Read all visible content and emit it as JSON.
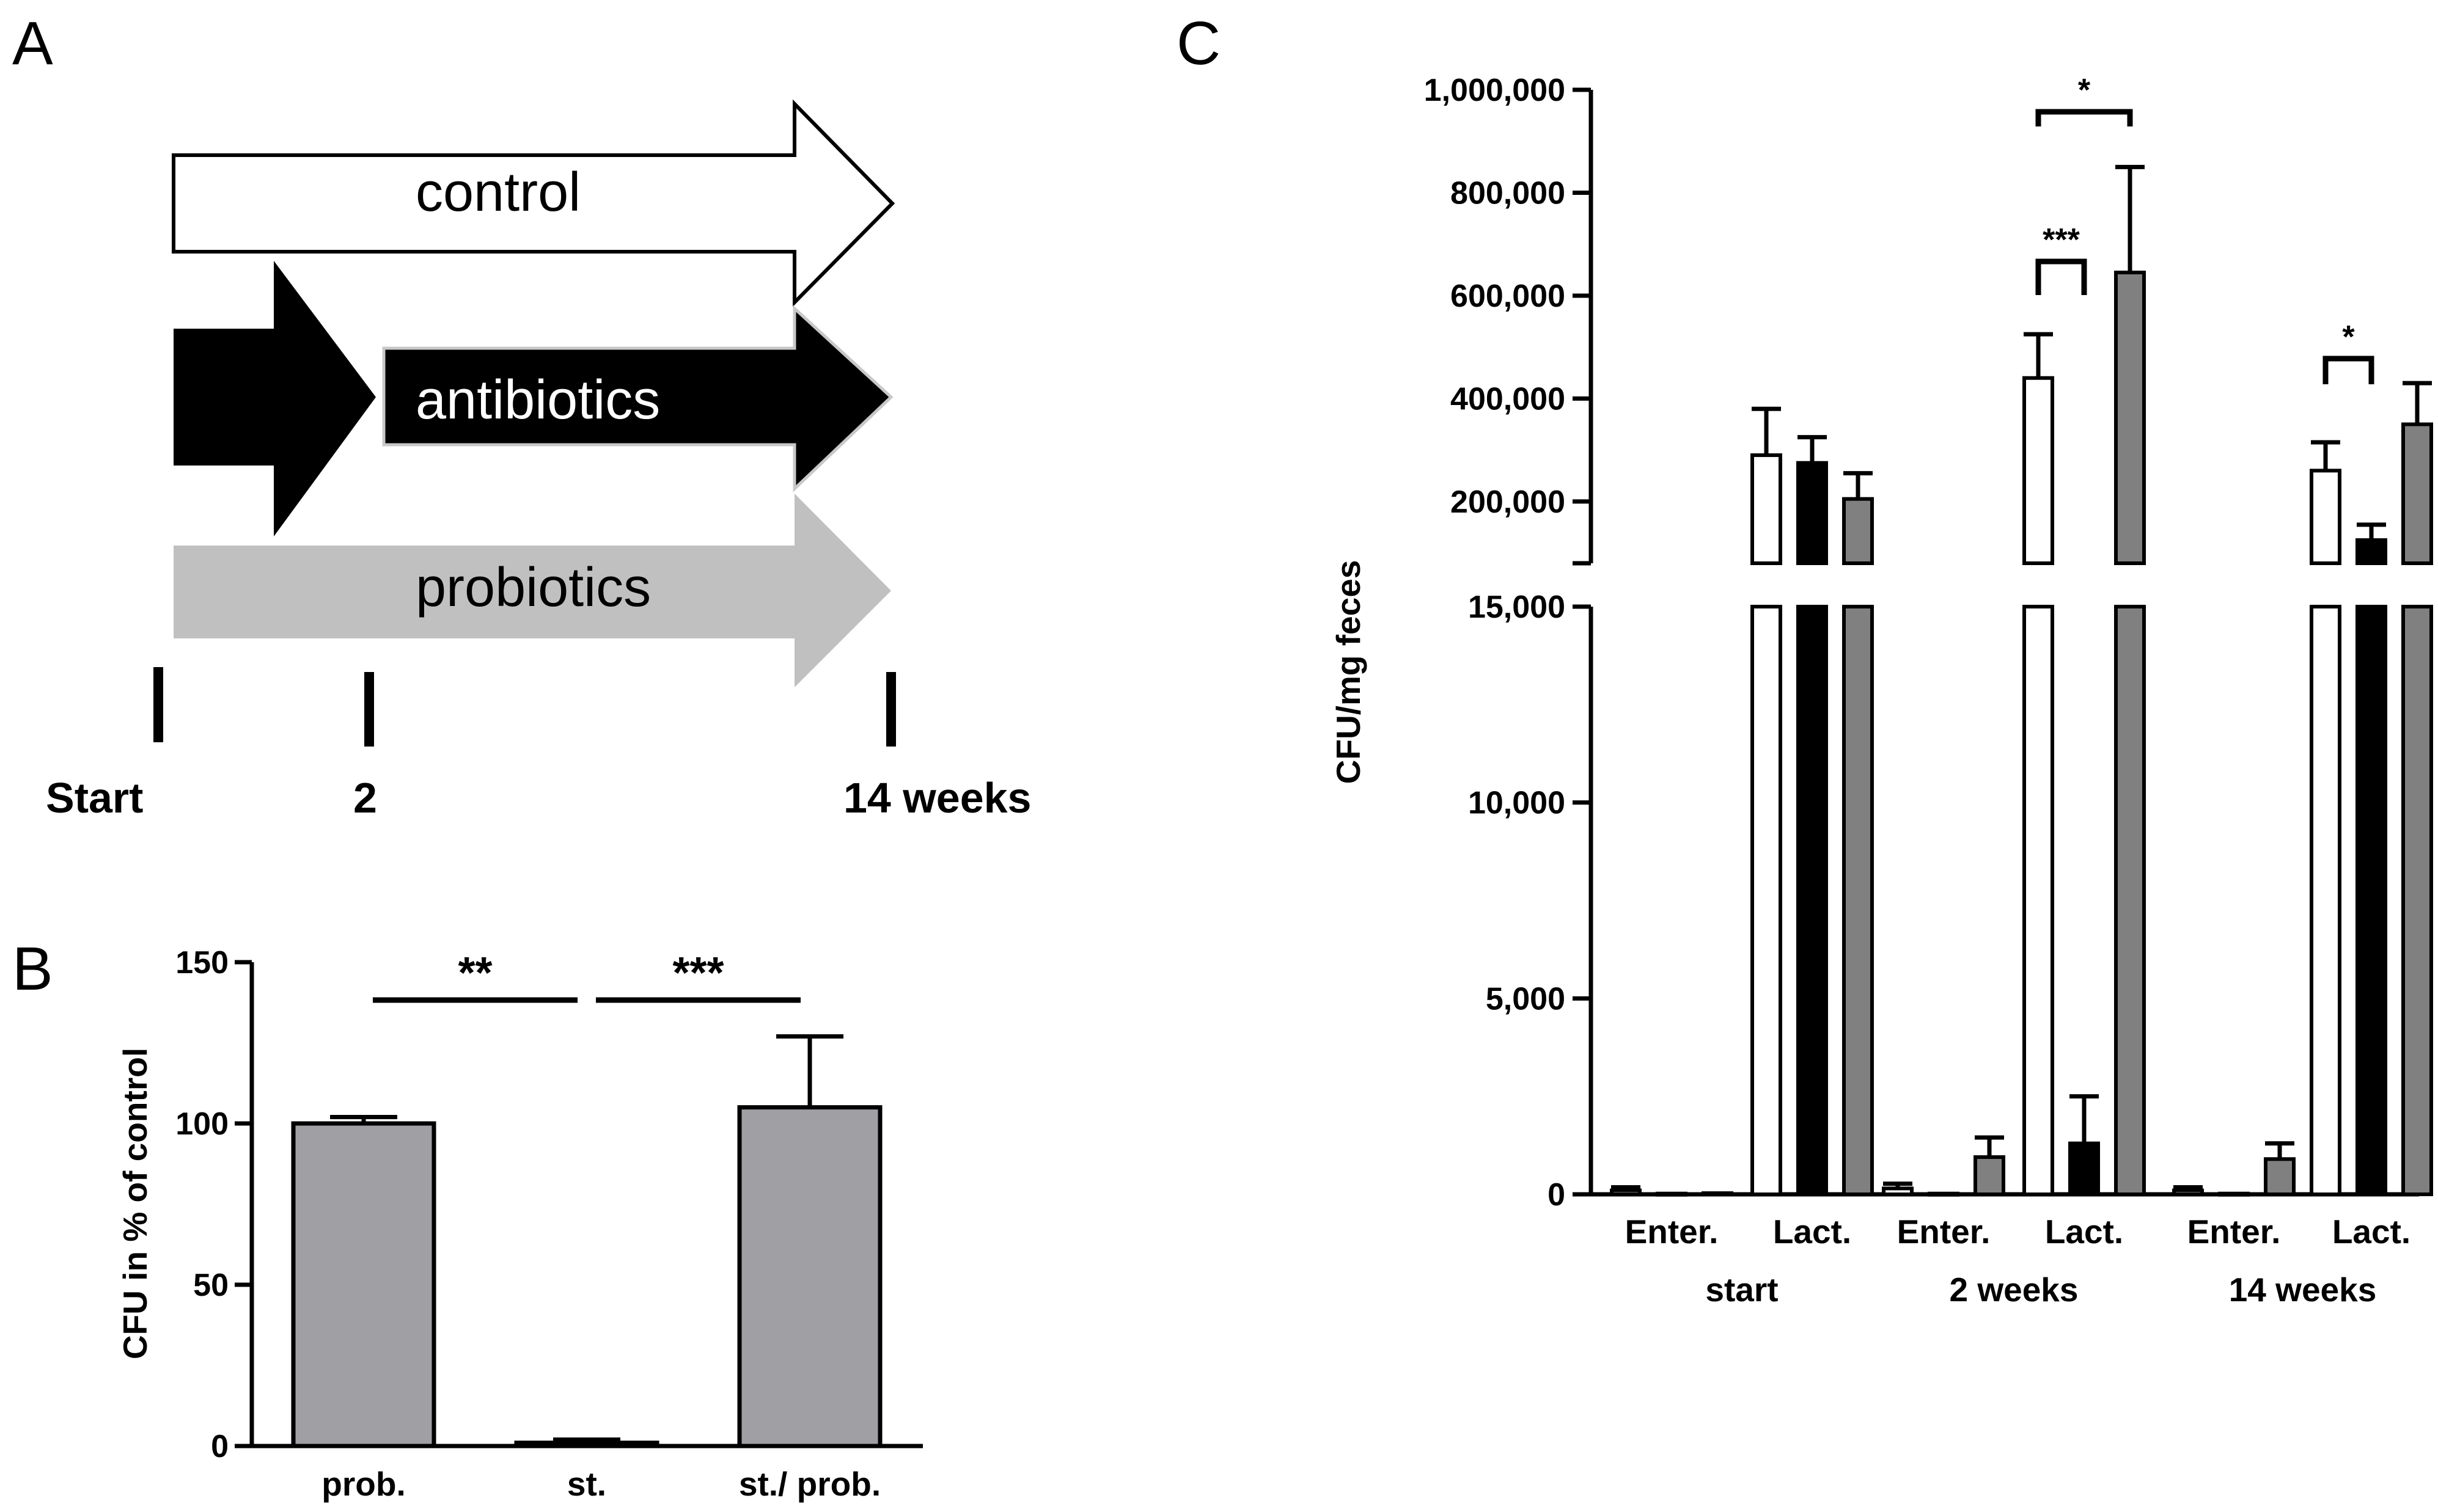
{
  "panels": {
    "a": "A",
    "b": "B",
    "c": "C"
  },
  "schematic": {
    "arrows": [
      {
        "label": "control",
        "fill": "#ffffff"
      },
      {
        "label": "antibiotics",
        "fill": "#000000"
      },
      {
        "label": "probiotics",
        "fill": "#c0c0c0"
      }
    ],
    "timeline": [
      "Start",
      "2",
      "14 weeks"
    ]
  },
  "chart_data": [
    {
      "id": "B",
      "type": "bar",
      "title": "",
      "xlabel": "",
      "ylabel": "CFU in % of control",
      "ylim": [
        0,
        150
      ],
      "yticks": [
        0,
        50,
        100,
        150
      ],
      "ytick_labels": [
        "0",
        "50",
        "100",
        "150"
      ],
      "categories": [
        "prob.",
        "st.",
        "st./ prob."
      ],
      "values": [
        100,
        1,
        105
      ],
      "errors": [
        2,
        1,
        22
      ],
      "bar_color": "#a0a0a4",
      "significance": [
        {
          "from": 0,
          "to": 1,
          "label": "**"
        },
        {
          "from": 1,
          "to": 2,
          "label": "***"
        }
      ]
    },
    {
      "id": "C",
      "type": "bar",
      "title": "",
      "xlabel": "",
      "ylabel": "CFU/mg feces",
      "axis_break": true,
      "lower_ylim": [
        0,
        15000
      ],
      "lower_ticks": [
        0,
        5000,
        10000,
        15000
      ],
      "lower_tick_labels": [
        "0",
        "5,000",
        "10,000",
        "15,000"
      ],
      "upper_ylim": [
        80000,
        1000000
      ],
      "upper_ticks": [
        200000,
        400000,
        600000,
        800000,
        1000000
      ],
      "upper_tick_labels": [
        "200,000",
        "400,000",
        "600,000",
        "800,000",
        "1,000,000"
      ],
      "series": [
        {
          "name": "control",
          "color": "#ffffff"
        },
        {
          "name": "antibiotics",
          "color": "#000000"
        },
        {
          "name": "probiotics",
          "color": "#808080"
        }
      ],
      "time_groups": [
        "start",
        "2 weeks",
        "14 weeks"
      ],
      "bacteria_groups": [
        "Enter.",
        "Lact."
      ],
      "bars": [
        {
          "time": "start",
          "bacteria": "Enter.",
          "series": "control",
          "value": 100,
          "error": 80
        },
        {
          "time": "start",
          "bacteria": "Enter.",
          "series": "antibiotics",
          "value": 20,
          "error": 0
        },
        {
          "time": "start",
          "bacteria": "Enter.",
          "series": "probiotics",
          "value": 30,
          "error": 0
        },
        {
          "time": "start",
          "bacteria": "Lact.",
          "series": "control",
          "value": 290000,
          "error": 90000
        },
        {
          "time": "start",
          "bacteria": "Lact.",
          "series": "antibiotics",
          "value": 275000,
          "error": 50000
        },
        {
          "time": "start",
          "bacteria": "Lact.",
          "series": "probiotics",
          "value": 205000,
          "error": 50000
        },
        {
          "time": "2 weeks",
          "bacteria": "Enter.",
          "series": "control",
          "value": 150,
          "error": 120
        },
        {
          "time": "2 weeks",
          "bacteria": "Enter.",
          "series": "antibiotics",
          "value": 20,
          "error": 0
        },
        {
          "time": "2 weeks",
          "bacteria": "Enter.",
          "series": "probiotics",
          "value": 950,
          "error": 500
        },
        {
          "time": "2 weeks",
          "bacteria": "Lact.",
          "series": "control",
          "value": 440000,
          "error": 85000
        },
        {
          "time": "2 weeks",
          "bacteria": "Lact.",
          "series": "antibiotics",
          "value": 1300,
          "error": 1200
        },
        {
          "time": "2 weeks",
          "bacteria": "Lact.",
          "series": "probiotics",
          "value": 645000,
          "error": 205000
        },
        {
          "time": "14 weeks",
          "bacteria": "Enter.",
          "series": "control",
          "value": 100,
          "error": 80
        },
        {
          "time": "14 weeks",
          "bacteria": "Enter.",
          "series": "antibiotics",
          "value": 20,
          "error": 0
        },
        {
          "time": "14 weeks",
          "bacteria": "Enter.",
          "series": "probiotics",
          "value": 900,
          "error": 400
        },
        {
          "time": "14 weeks",
          "bacteria": "Lact.",
          "series": "control",
          "value": 260000,
          "error": 55000
        },
        {
          "time": "14 weeks",
          "bacteria": "Lact.",
          "series": "antibiotics",
          "value": 125000,
          "error": 30000
        },
        {
          "time": "14 weeks",
          "bacteria": "Lact.",
          "series": "probiotics",
          "value": 350000,
          "error": 80000
        }
      ],
      "significance": [
        {
          "time": "2 weeks",
          "bacteria": "Lact.",
          "from": "control",
          "to": "probiotics",
          "label": "*"
        },
        {
          "time": "2 weeks",
          "bacteria": "Lact.",
          "from": "control",
          "to": "antibiotics",
          "label": "***"
        },
        {
          "time": "14 weeks",
          "bacteria": "Lact.",
          "from": "control",
          "to": "antibiotics",
          "label": "*"
        }
      ]
    }
  ]
}
